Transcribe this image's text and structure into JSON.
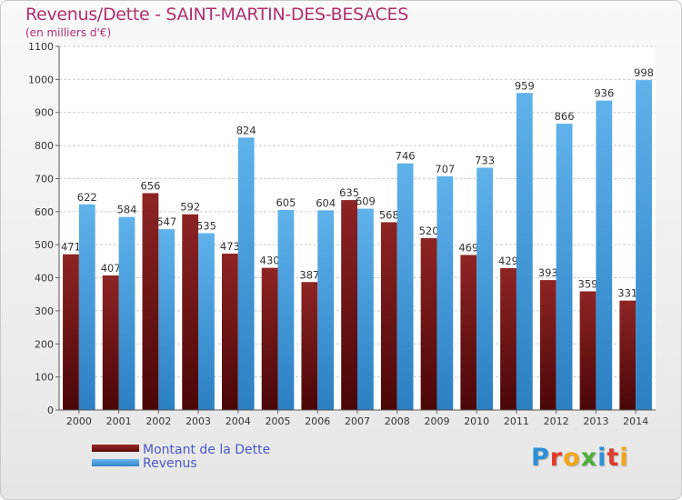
{
  "header": {
    "title": "Revenus/Dette - SAINT-MARTIN-DES-BESACES",
    "subtitle": "(en milliers d'€)"
  },
  "logo": {
    "text": "Proxiti",
    "colors": [
      "#2d8fd6",
      "#e03c2c",
      "#f2a51a",
      "#4caf3a",
      "#2d8fd6",
      "#e03c2c",
      "#f2a51a"
    ]
  },
  "legend": {
    "items": [
      {
        "label": "Montant de la Dette",
        "color": "#7a1414"
      },
      {
        "label": "Revenus",
        "color": "#4aa3e0"
      }
    ]
  },
  "chart_data": {
    "type": "bar",
    "title": "Revenus/Dette - SAINT-MARTIN-DES-BESACES",
    "subtitle": "(en milliers d'€)",
    "categories": [
      "2000",
      "2001",
      "2002",
      "2003",
      "2004",
      "2005",
      "2006",
      "2007",
      "2008",
      "2009",
      "2010",
      "2011",
      "2012",
      "2013",
      "2014"
    ],
    "series": [
      {
        "name": "Montant de la Dette",
        "color": "#7a1414",
        "values": [
          471,
          407,
          656,
          592,
          473,
          430,
          387,
          635,
          568,
          520,
          469,
          429,
          393,
          359,
          331
        ]
      },
      {
        "name": "Revenus",
        "color": "#4aa3e0",
        "values": [
          622,
          584,
          547,
          535,
          824,
          605,
          604,
          609,
          746,
          707,
          733,
          959,
          866,
          936,
          998
        ]
      }
    ],
    "ylim": [
      0,
      1100
    ],
    "yticks": [
      0,
      100,
      200,
      300,
      400,
      500,
      600,
      700,
      800,
      900,
      1000,
      1100
    ],
    "grid": true,
    "legend_position": "bottom-left"
  }
}
